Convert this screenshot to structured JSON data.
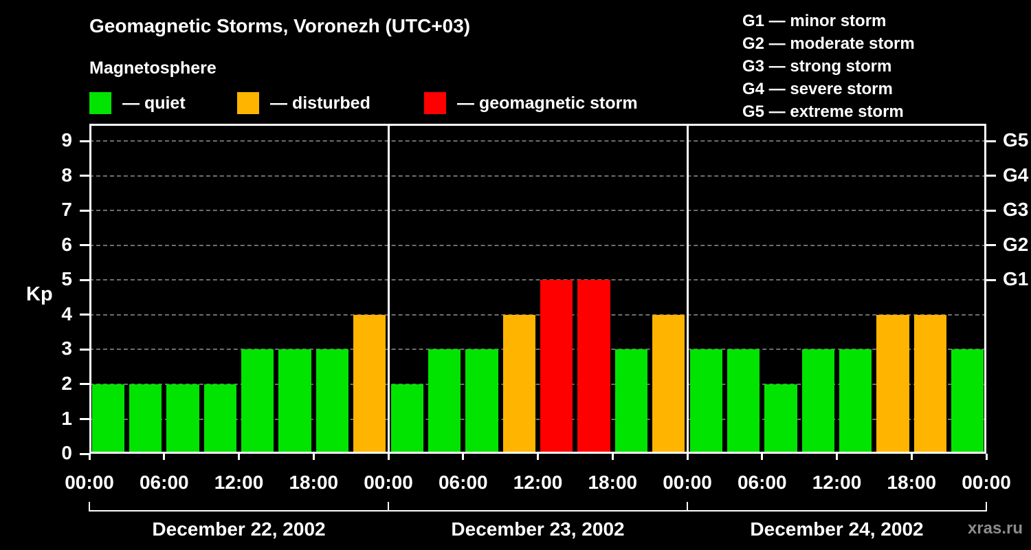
{
  "header": {
    "title": "Geomagnetic Storms, Voronezh (UTC+03)",
    "subtitle": "Magnetosphere"
  },
  "legend": {
    "items": [
      {
        "label": "— quiet",
        "color": "#00e400",
        "level": "quiet"
      },
      {
        "label": "— disturbed",
        "color": "#ffb400",
        "level": "disturbed"
      },
      {
        "label": "— geomagnetic storm",
        "color": "#ff0000",
        "level": "storm"
      }
    ]
  },
  "g_legend": [
    "G1 — minor storm",
    "G2 — moderate storm",
    "G3 — strong storm",
    "G4 — severe storm",
    "G5 — extreme storm"
  ],
  "watermark": "xras.ru",
  "chart_data": {
    "type": "bar",
    "title": "Geomagnetic Storms, Voronezh (UTC+03)",
    "ylabel": "Kp",
    "ylim": [
      0,
      9.5
    ],
    "grid": "horizontal-dashed",
    "y_ticks": [
      0,
      1,
      2,
      3,
      4,
      5,
      6,
      7,
      8,
      9
    ],
    "right_axis_labels": [
      {
        "value": 5,
        "label": "G1"
      },
      {
        "value": 6,
        "label": "G2"
      },
      {
        "value": 7,
        "label": "G3"
      },
      {
        "value": 8,
        "label": "G4"
      },
      {
        "value": 9,
        "label": "G5"
      }
    ],
    "x_tick_labels": [
      "00:00",
      "06:00",
      "12:00",
      "18:00"
    ],
    "x_axis_end_label": "00:00",
    "bar_interval_hours": 3,
    "colors": {
      "quiet": "#00e400",
      "disturbed": "#ffb400",
      "storm": "#ff0000"
    },
    "thresholds": {
      "disturbed_min": 4,
      "storm_min": 5
    },
    "days": [
      {
        "date": "December 22, 2002",
        "values": [
          2,
          2,
          2,
          2,
          3,
          3,
          3,
          4
        ]
      },
      {
        "date": "December 23, 2002",
        "values": [
          2,
          3,
          3,
          4,
          5,
          5,
          3,
          4
        ]
      },
      {
        "date": "December 24, 2002",
        "values": [
          3,
          3,
          2,
          3,
          3,
          4,
          4,
          3
        ]
      }
    ]
  }
}
